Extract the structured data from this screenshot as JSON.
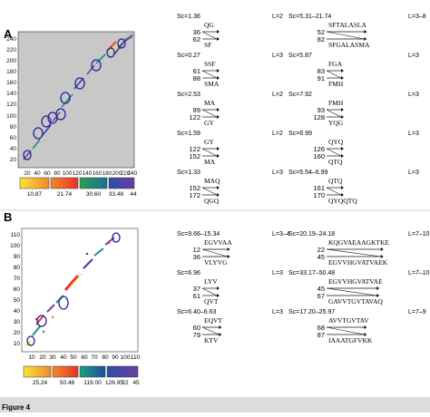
{
  "panelA": {
    "label": "A",
    "yticks": [
      "20",
      "40",
      "60",
      "80",
      "100",
      "120",
      "140",
      "160",
      "180",
      "200",
      "220",
      "240"
    ],
    "xticks": [
      "20",
      "40",
      "60",
      "80",
      "100",
      "120",
      "140",
      "160",
      "180",
      "200",
      "220",
      "240"
    ],
    "colorbar": [
      "10.87",
      "21.74",
      "30.60",
      "33.48",
      "44"
    ],
    "colors": [
      "#f7e53a",
      "#e8312a",
      "#1a8f8a",
      "#3a3fa8",
      "#7a3fa0"
    ],
    "entries": [
      {
        "sc": "Sc=1.36",
        "l": "L=2",
        "n1": "36",
        "n2": "62",
        "top": "QG",
        "bot": "SF"
      },
      {
        "sc": "Sc=5.31–21.74",
        "l": "L=3–8",
        "n1": "52",
        "n2": "82",
        "top": "SFTALASLA",
        "bot": "SFGALASMA"
      },
      {
        "sc": "Sc=0.27",
        "l": "L=3",
        "n1": "61",
        "n2": "88",
        "top": "SSF",
        "bot": "SMA"
      },
      {
        "sc": "Sc=5.87",
        "l": "L=3",
        "n1": "83",
        "n2": "91",
        "top": "FGA",
        "bot": "FMH"
      },
      {
        "sc": "Sc=2.53",
        "l": "L=2",
        "n1": "89",
        "n2": "122",
        "top": "MA",
        "bot": "GY"
      },
      {
        "sc": "Sc=7.92",
        "l": "L=3",
        "n1": "93",
        "n2": "128",
        "top": "FMH",
        "bot": "YQG"
      },
      {
        "sc": "Sc=1.59",
        "l": "L=2",
        "n1": "122",
        "n2": "152",
        "top": "GY",
        "bot": "MA"
      },
      {
        "sc": "Sc=6.99",
        "l": "L=3",
        "n1": "126",
        "n2": "160",
        "top": "QYQ",
        "bot": "QTQ"
      },
      {
        "sc": "Sc=1.33",
        "l": "L=3",
        "n1": "152",
        "n2": "172",
        "top": "MAQ",
        "bot": "QGQ"
      },
      {
        "sc": "Sc=5.54–6.99",
        "l": "L=3",
        "n1": "161",
        "n2": "170",
        "top": "QTQ",
        "bot": "QYQQTQ"
      }
    ]
  },
  "panelB": {
    "label": "B",
    "yticks": [
      "10",
      "20",
      "30",
      "40",
      "50",
      "60",
      "70",
      "80",
      "90",
      "100",
      "110"
    ],
    "xticks": [
      "10",
      "20",
      "30",
      "40",
      "50",
      "60",
      "70",
      "80",
      "90",
      "100",
      "110"
    ],
    "colorbar": [
      "25.24",
      "50.48",
      "119.00",
      "126.95",
      "22",
      "45"
    ],
    "colors": [
      "#f7e53a",
      "#e8312a",
      "#1a8f8a",
      "#3a3fa8",
      "#7a3fa0"
    ],
    "entries": [
      {
        "sc": "Sc=9.66–15.34",
        "l": "L=3–4",
        "n1": "12",
        "n2": "36",
        "top": "EGVVAA",
        "bot": "VLYVG"
      },
      {
        "sc": "Sc=20.19–24.18",
        "l": "L=7–10",
        "n1": "22",
        "n2": "45",
        "top": "KQGVAEAAGKTKE",
        "bot": "EGVVHGVATVAEK"
      },
      {
        "sc": "Sc=6.96",
        "l": "L=3",
        "n1": "37",
        "n2": "61",
        "top": "LYV",
        "bot": "QVT"
      },
      {
        "sc": "Sc=33.17–50.48",
        "l": "L=7–10",
        "n1": "45",
        "n2": "67",
        "top": "EGVVHGVATVAE",
        "bot": "GAVVTGVTAVAQ"
      },
      {
        "sc": "Sc=6.40–6.63",
        "l": "L=3",
        "n1": "60",
        "n2": "79",
        "top": "EQVT",
        "bot": "KTV"
      },
      {
        "sc": "Sc=17.20–25.97",
        "l": "L=7–9",
        "n1": "68",
        "n2": "87",
        "top": "AVVTGVTAV",
        "bot": "IAAATGFVKK"
      }
    ]
  },
  "caption": "Figure 4"
}
